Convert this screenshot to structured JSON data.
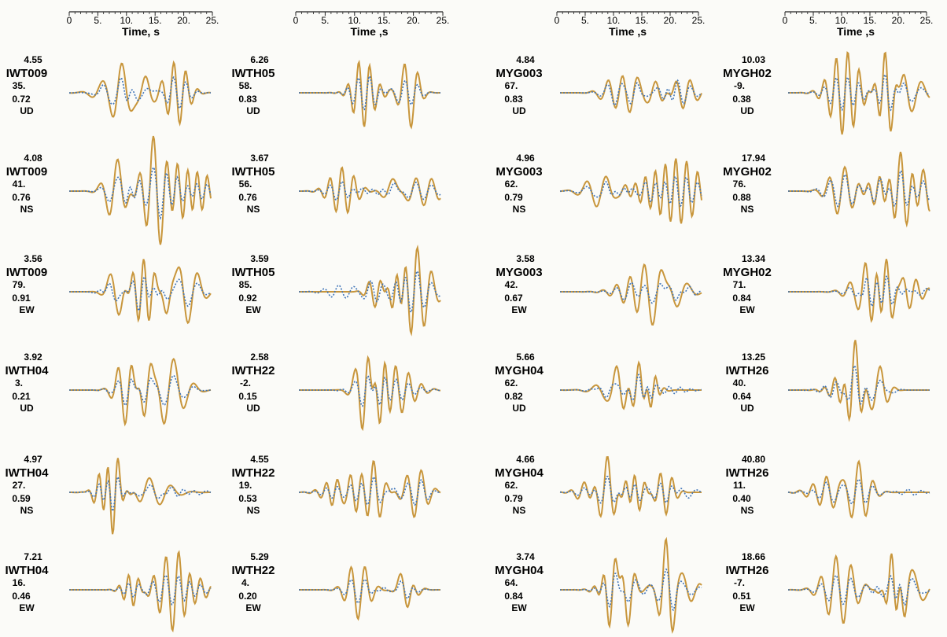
{
  "chart_data": {
    "type": "line",
    "time_axis": {
      "label": "Time, s",
      "labels_per_column": [
        "Time, s",
        "Time ,s",
        "Time ,s",
        "Time ,s"
      ],
      "ticks": [
        "0",
        "5.",
        "10.",
        "15.",
        "20.",
        "25."
      ],
      "xlim": [
        0,
        25
      ]
    },
    "series_style": {
      "observed": {
        "color": "#c8963c",
        "style": "solid"
      },
      "synthetic": {
        "color": "#3f74b8",
        "style": "dotted"
      }
    },
    "panels": [
      {
        "amplitude": "4.55",
        "station": "IWT009",
        "azimuth": "35.",
        "ratio": "0.72",
        "component": "UD",
        "seed": 11
      },
      {
        "amplitude": "4.08",
        "station": "IWT009",
        "azimuth": "41.",
        "ratio": "0.76",
        "component": "NS",
        "seed": 12
      },
      {
        "amplitude": "3.56",
        "station": "IWT009",
        "azimuth": "79.",
        "ratio": "0.91",
        "component": "EW",
        "seed": 13
      },
      {
        "amplitude": "3.92",
        "station": "IWTH04",
        "azimuth": "3.",
        "ratio": "0.21",
        "component": "UD",
        "seed": 14
      },
      {
        "amplitude": "4.97",
        "station": "IWTH04",
        "azimuth": "27.",
        "ratio": "0.59",
        "component": "NS",
        "seed": 15
      },
      {
        "amplitude": "7.21",
        "station": "IWTH04",
        "azimuth": "16.",
        "ratio": "0.46",
        "component": "EW",
        "seed": 16
      },
      {
        "amplitude": "6.26",
        "station": "IWTH05",
        "azimuth": "58.",
        "ratio": "0.83",
        "component": "UD",
        "seed": 21
      },
      {
        "amplitude": "3.67",
        "station": "IWTH05",
        "azimuth": "56.",
        "ratio": "0.76",
        "component": "NS",
        "seed": 22
      },
      {
        "amplitude": "3.59",
        "station": "IWTH05",
        "azimuth": "85.",
        "ratio": "0.92",
        "component": "EW",
        "seed": 23
      },
      {
        "amplitude": "2.58",
        "station": "IWTH22",
        "azimuth": "-2.",
        "ratio": "0.15",
        "component": "UD",
        "seed": 24
      },
      {
        "amplitude": "4.55",
        "station": "IWTH22",
        "azimuth": "19.",
        "ratio": "0.53",
        "component": "NS",
        "seed": 25
      },
      {
        "amplitude": "5.29",
        "station": "IWTH22",
        "azimuth": "4.",
        "ratio": "0.20",
        "component": "EW",
        "seed": 26
      },
      {
        "amplitude": "4.84",
        "station": "MYG003",
        "azimuth": "67.",
        "ratio": "0.83",
        "component": "UD",
        "seed": 31
      },
      {
        "amplitude": "4.96",
        "station": "MYG003",
        "azimuth": "62.",
        "ratio": "0.79",
        "component": "NS",
        "seed": 32
      },
      {
        "amplitude": "3.58",
        "station": "MYG003",
        "azimuth": "42.",
        "ratio": "0.67",
        "component": "EW",
        "seed": 33
      },
      {
        "amplitude": "5.66",
        "station": "MYGH04",
        "azimuth": "62.",
        "ratio": "0.82",
        "component": "UD",
        "seed": 34
      },
      {
        "amplitude": "4.66",
        "station": "MYGH04",
        "azimuth": "62.",
        "ratio": "0.79",
        "component": "NS",
        "seed": 35
      },
      {
        "amplitude": "3.74",
        "station": "MYGH04",
        "azimuth": "64.",
        "ratio": "0.84",
        "component": "EW",
        "seed": 36
      },
      {
        "amplitude": "10.03",
        "station": "MYGH02",
        "azimuth": "-9.",
        "ratio": "0.38",
        "component": "UD",
        "seed": 41
      },
      {
        "amplitude": "17.94",
        "station": "MYGH02",
        "azimuth": "76.",
        "ratio": "0.88",
        "component": "NS",
        "seed": 42
      },
      {
        "amplitude": "13.34",
        "station": "MYGH02",
        "azimuth": "71.",
        "ratio": "0.84",
        "component": "EW",
        "seed": 43
      },
      {
        "amplitude": "13.25",
        "station": "IWTH26",
        "azimuth": "40.",
        "ratio": "0.64",
        "component": "UD",
        "seed": 44
      },
      {
        "amplitude": "40.80",
        "station": "IWTH26",
        "azimuth": "11.",
        "ratio": "0.40",
        "component": "NS",
        "seed": 45
      },
      {
        "amplitude": "18.66",
        "station": "IWTH26",
        "azimuth": "-7.",
        "ratio": "0.51",
        "component": "EW",
        "seed": 46
      }
    ]
  }
}
